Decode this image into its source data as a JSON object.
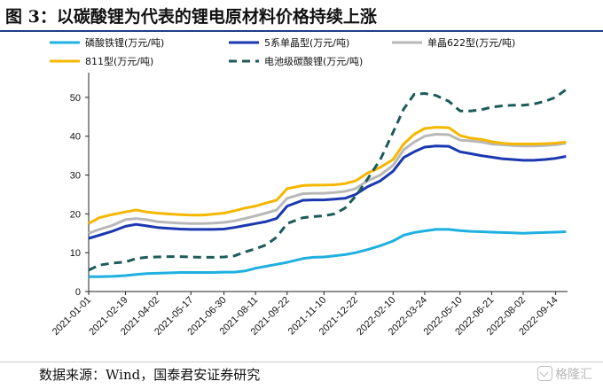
{
  "figure": {
    "title": "图 3：以碳酸锂为代表的锂电原材料价格持续上涨",
    "source": "数据来源：Wind，国泰君安证券研究",
    "watermark": "格隆汇"
  },
  "chart_data": {
    "type": "line",
    "title": "",
    "xlabel": "",
    "ylabel": "",
    "ylim": [
      0,
      55
    ],
    "yticks": [
      0,
      10,
      20,
      30,
      40,
      50
    ],
    "grid": false,
    "legend_position": "top",
    "x_tick_labels": [
      "2021-01-01",
      "2021-02-19",
      "2021-04-02",
      "2021-05-17",
      "2021-06-30",
      "2021-08-11",
      "2021-09-22",
      "2021-11-10",
      "2021-12-22",
      "2022-02-10",
      "2022-03-24",
      "2022-05-10",
      "2022-06-21",
      "2022-08-02",
      "2022-09-14"
    ],
    "x": [
      "2021-01-01",
      "2021-01-15",
      "2021-02-01",
      "2021-02-19",
      "2021-03-05",
      "2021-03-19",
      "2021-04-02",
      "2021-04-16",
      "2021-05-03",
      "2021-05-17",
      "2021-06-01",
      "2021-06-15",
      "2021-06-30",
      "2021-07-14",
      "2021-07-28",
      "2021-08-11",
      "2021-08-25",
      "2021-09-08",
      "2021-09-22",
      "2021-10-13",
      "2021-10-27",
      "2021-11-10",
      "2021-11-24",
      "2021-12-08",
      "2021-12-22",
      "2022-01-07",
      "2022-01-24",
      "2022-02-10",
      "2022-02-24",
      "2022-03-10",
      "2022-03-24",
      "2022-04-08",
      "2022-04-25",
      "2022-05-10",
      "2022-05-24",
      "2022-06-07",
      "2022-06-21",
      "2022-07-05",
      "2022-07-19",
      "2022-08-02",
      "2022-08-16",
      "2022-08-31",
      "2022-09-14",
      "2022-09-28"
    ],
    "series": [
      {
        "name": "磷酸铁锂(万元/吨)",
        "color": "#1fb0e0",
        "dash": false,
        "values": [
          3.8,
          3.8,
          3.9,
          4.1,
          4.4,
          4.6,
          4.7,
          4.8,
          4.9,
          4.9,
          4.9,
          4.9,
          5.0,
          5.0,
          5.3,
          6.0,
          6.5,
          7.0,
          7.5,
          8.5,
          8.8,
          8.9,
          9.2,
          9.5,
          10.0,
          10.8,
          11.8,
          13.0,
          14.5,
          15.2,
          15.6,
          16.0,
          16.0,
          15.7,
          15.5,
          15.4,
          15.3,
          15.2,
          15.1,
          15.0,
          15.1,
          15.2,
          15.3,
          15.4
        ]
      },
      {
        "name": "5系单晶型(万元/吨)",
        "color": "#1a38b0",
        "dash": false,
        "values": [
          13.7,
          14.5,
          15.5,
          16.8,
          17.3,
          16.9,
          16.5,
          16.3,
          16.1,
          16.0,
          16.0,
          16.0,
          16.1,
          16.5,
          17.0,
          17.5,
          18.0,
          18.8,
          22.0,
          23.5,
          23.6,
          23.6,
          23.8,
          24.0,
          25.0,
          27.0,
          28.5,
          31.0,
          34.5,
          36.0,
          37.2,
          37.5,
          37.4,
          36.0,
          35.5,
          35.0,
          34.6,
          34.2,
          34.0,
          33.8,
          33.8,
          34.0,
          34.3,
          34.8
        ]
      },
      {
        "name": "单晶622型(万元/吨)",
        "color": "#b8b8b8",
        "dash": false,
        "values": [
          15.0,
          16.0,
          17.0,
          18.5,
          18.8,
          18.5,
          18.0,
          17.8,
          17.6,
          17.5,
          17.5,
          17.6,
          17.8,
          18.2,
          18.8,
          19.5,
          20.2,
          21.0,
          24.0,
          25.2,
          25.3,
          25.3,
          25.5,
          25.8,
          26.5,
          28.5,
          30.0,
          32.5,
          36.5,
          38.5,
          40.0,
          40.5,
          40.4,
          39.0,
          38.8,
          38.5,
          38.0,
          37.8,
          37.6,
          37.5,
          37.5,
          37.6,
          37.8,
          38.2
        ]
      },
      {
        "name": "811型(万元/吨)",
        "color": "#f5b700",
        "dash": false,
        "values": [
          17.5,
          19.0,
          19.8,
          20.5,
          21.0,
          20.5,
          20.2,
          20.0,
          19.8,
          19.7,
          19.7,
          19.9,
          20.2,
          20.8,
          21.5,
          22.0,
          22.8,
          23.5,
          26.5,
          27.3,
          27.4,
          27.4,
          27.5,
          27.8,
          28.5,
          30.5,
          32.0,
          34.0,
          38.0,
          40.5,
          42.0,
          42.3,
          42.2,
          40.2,
          39.5,
          39.2,
          38.6,
          38.2,
          38.0,
          38.0,
          38.0,
          38.1,
          38.2,
          38.5
        ]
      },
      {
        "name": "电池级碳酸锂(万元/吨)",
        "color": "#1d5a5a",
        "dash": true,
        "values": [
          5.5,
          6.8,
          7.3,
          7.6,
          8.5,
          8.8,
          8.9,
          9.0,
          9.0,
          8.9,
          8.8,
          8.8,
          8.9,
          9.2,
          10.2,
          11.0,
          12.0,
          14.0,
          17.5,
          19.0,
          19.3,
          19.5,
          20.0,
          21.5,
          24.5,
          29.0,
          34.0,
          41.0,
          47.0,
          50.8,
          51.0,
          50.5,
          49.0,
          46.5,
          46.5,
          46.8,
          47.5,
          47.8,
          48.0,
          48.0,
          48.3,
          49.0,
          50.0,
          52.0
        ]
      }
    ]
  }
}
